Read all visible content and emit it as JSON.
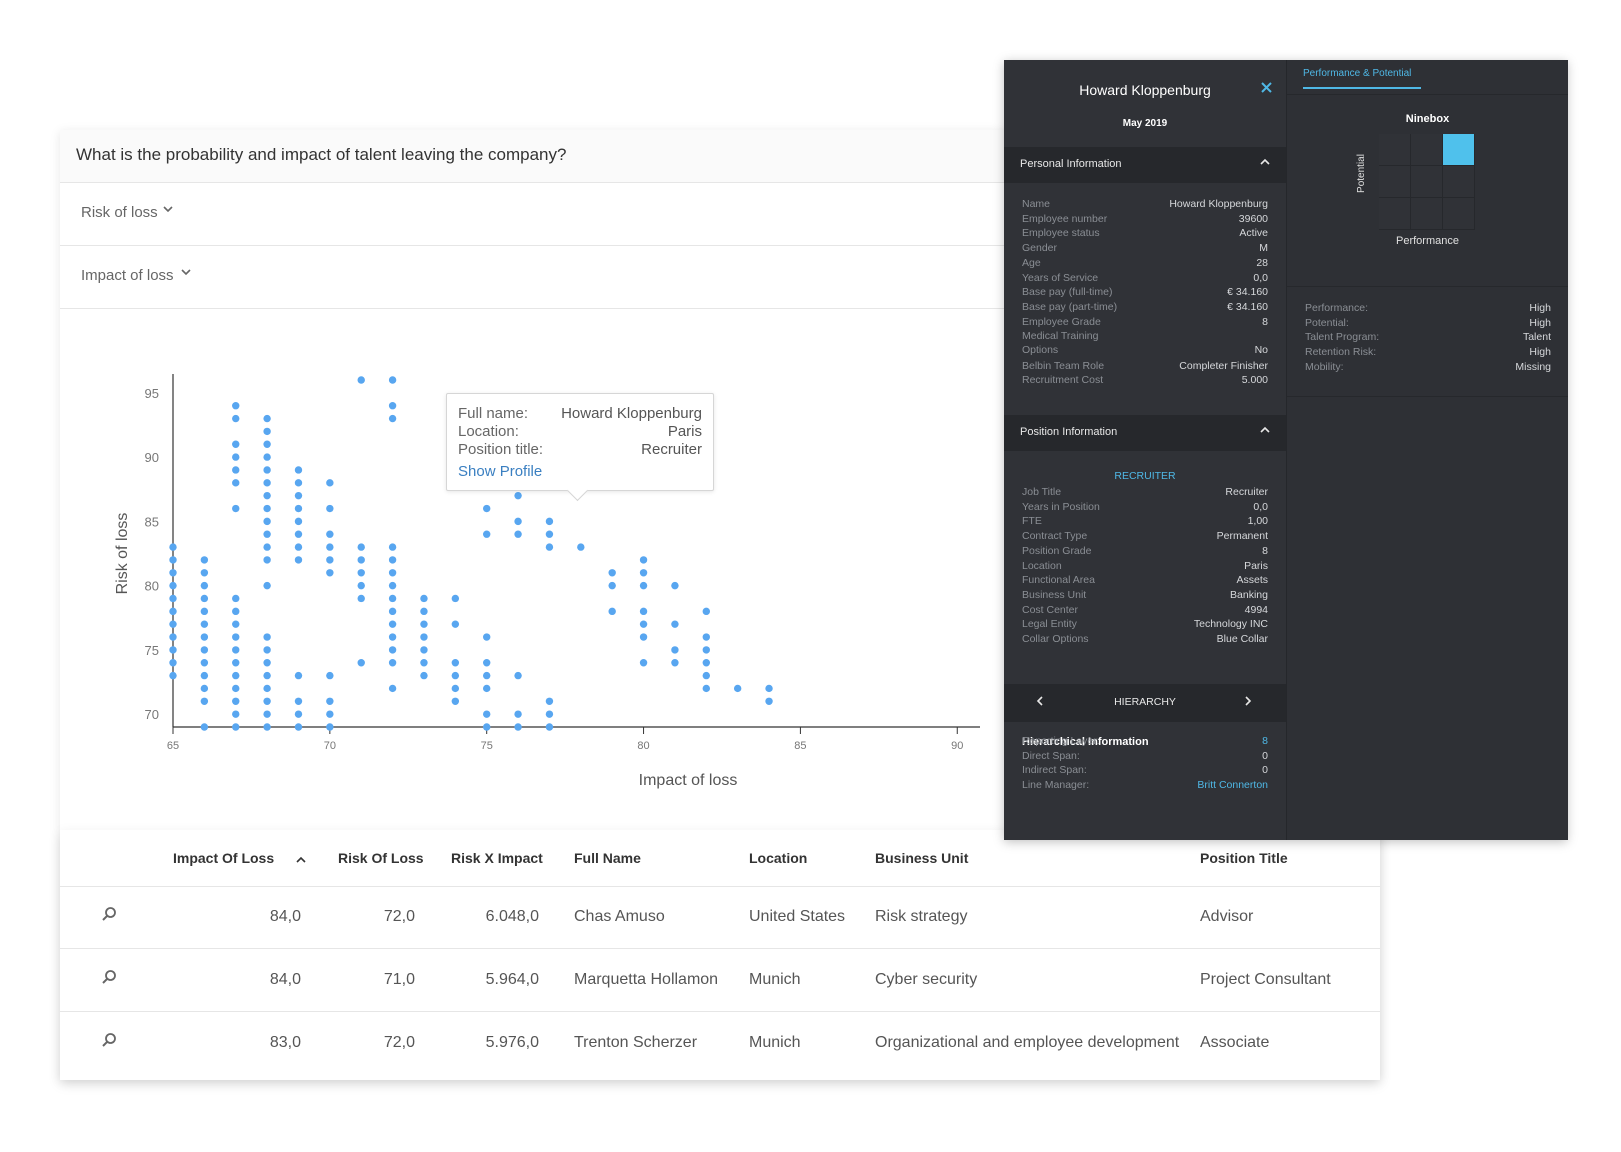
{
  "question": "What is the probability and impact of talent leaving the company?",
  "filters": {
    "risk_label": "Risk of loss",
    "impact_label": "Impact of loss",
    "chevron": "chevron-down-icon"
  },
  "tooltip": {
    "full_name_key": "Full name:",
    "full_name": "Howard Kloppenburg",
    "location_key": "Location:",
    "location": "Paris",
    "position_key": "Position title:",
    "position": "Recruiter",
    "link": "Show Profile"
  },
  "chart_data": {
    "type": "scatter",
    "xlabel": "Impact of loss",
    "ylabel": "Risk of loss",
    "xlim": [
      65,
      92
    ],
    "ylim": [
      69,
      96
    ],
    "xticks": [
      65,
      70,
      75,
      80,
      85,
      90
    ],
    "yticks": [
      70,
      75,
      80,
      85,
      90,
      95
    ],
    "color": "#58a6f0",
    "columns": [
      {
        "x": 65,
        "y": [
          73,
          74,
          75,
          76,
          77,
          78,
          79,
          80,
          81,
          82,
          83
        ]
      },
      {
        "x": 66,
        "y": [
          69,
          71,
          72,
          73,
          74,
          75,
          76,
          77,
          78,
          79,
          80,
          81,
          82
        ]
      },
      {
        "x": 67,
        "y": [
          69,
          70,
          71,
          72,
          73,
          74,
          75,
          76,
          77,
          78,
          79,
          86,
          88,
          89,
          90,
          91,
          93,
          94
        ]
      },
      {
        "x": 68,
        "y": [
          69,
          70,
          71,
          72,
          73,
          74,
          75,
          76,
          80,
          82,
          83,
          84,
          85,
          86,
          87,
          88,
          89,
          90,
          91,
          92,
          93
        ]
      },
      {
        "x": 69,
        "y": [
          69,
          70,
          71,
          73,
          82,
          83,
          84,
          85,
          86,
          87,
          88,
          89
        ]
      },
      {
        "x": 70,
        "y": [
          69,
          70,
          71,
          73,
          81,
          82,
          83,
          84,
          86,
          88
        ]
      },
      {
        "x": 71,
        "y": [
          74,
          79,
          80,
          81,
          82,
          83,
          96
        ]
      },
      {
        "x": 72,
        "y": [
          72,
          74,
          75,
          76,
          77,
          78,
          79,
          80,
          81,
          82,
          83,
          93,
          94,
          96
        ]
      },
      {
        "x": 73,
        "y": [
          73,
          74,
          75,
          76,
          77,
          78,
          79
        ]
      },
      {
        "x": 74,
        "y": [
          71,
          72,
          73,
          74,
          77,
          79
        ]
      },
      {
        "x": 75,
        "y": [
          69,
          70,
          72,
          73,
          74,
          76,
          84,
          86,
          88,
          90,
          91
        ]
      },
      {
        "x": 76,
        "y": [
          69,
          70,
          73,
          84,
          85,
          87,
          88,
          89,
          90
        ]
      },
      {
        "x": 77,
        "y": [
          69,
          70,
          71,
          83,
          84,
          85,
          90
        ]
      },
      {
        "x": 78,
        "y": [
          83,
          90
        ]
      },
      {
        "x": 79,
        "y": [
          78,
          80,
          81
        ]
      },
      {
        "x": 80,
        "y": [
          74,
          76,
          77,
          78,
          80,
          81,
          82
        ]
      },
      {
        "x": 81,
        "y": [
          74,
          75,
          77,
          80
        ]
      },
      {
        "x": 82,
        "y": [
          72,
          73,
          74,
          75,
          76,
          78
        ]
      },
      {
        "x": 83,
        "y": [
          72
        ]
      },
      {
        "x": 84,
        "y": [
          71,
          72
        ]
      }
    ]
  },
  "table": {
    "headers": [
      "Impact Of Loss",
      "Risk Of Loss",
      "Risk X Impact",
      "Full Name",
      "Location",
      "Business Unit",
      "Position Title"
    ],
    "sort_icon": "sort-ascending-icon",
    "row_icon": "search-icon",
    "rows": [
      [
        "84,0",
        "72,0",
        "6.048,0",
        "Chas Amuso",
        "United States",
        "Risk strategy",
        "Advisor"
      ],
      [
        "84,0",
        "71,0",
        "5.964,0",
        "Marquetta Hollamon",
        "Munich",
        "Cyber security",
        "Project Consultant"
      ],
      [
        "83,0",
        "72,0",
        "5.976,0",
        "Trenton Scherzer",
        "Munich",
        "Organizational and employee development",
        "Associate"
      ]
    ]
  },
  "profile": {
    "name": "Howard Kloppenburg",
    "date": "May 2019",
    "close_icon": "close-icon",
    "personal": {
      "title": "Personal Information",
      "fields": [
        {
          "k": "Name",
          "v": "Howard Kloppenburg"
        },
        {
          "k": "Employee number",
          "v": "39600"
        },
        {
          "k": "Employee status",
          "v": "Active"
        },
        {
          "k": "Gender",
          "v": "M"
        },
        {
          "k": "Age",
          "v": "28"
        },
        {
          "k": "Years of Service",
          "v": "0,0"
        },
        {
          "k": "Base pay (full-time)",
          "v": "€ 34.160"
        },
        {
          "k": "Base pay (part-time)",
          "v": "€ 34.160"
        },
        {
          "k": "Employee Grade",
          "v": "8"
        },
        {
          "k": "Medical Training",
          "v": ""
        },
        {
          "k": "Options",
          "v": "No"
        },
        {
          "k": "Belbin Team Role",
          "v": "Completer Finisher"
        },
        {
          "k": "Recruitment Cost",
          "v": "5.000"
        }
      ]
    },
    "position": {
      "title": "Position Information",
      "role": "RECRUITER",
      "fields": [
        {
          "k": "Job Title",
          "v": "Recruiter"
        },
        {
          "k": "Years in Position",
          "v": "0,0"
        },
        {
          "k": "FTE",
          "v": "1,00"
        },
        {
          "k": "Contract Type",
          "v": "Permanent"
        },
        {
          "k": "Position Grade",
          "v": "8"
        },
        {
          "k": "Location",
          "v": "Paris"
        },
        {
          "k": "Functional Area",
          "v": "Assets"
        },
        {
          "k": "Business Unit",
          "v": "Banking"
        },
        {
          "k": "Cost Center",
          "v": "4994"
        },
        {
          "k": "Legal Entity",
          "v": "Technology INC"
        },
        {
          "k": "Collar Options",
          "v": "Blue Collar"
        }
      ]
    },
    "hierarchy": {
      "nav_label": "HIERARCHY",
      "title": "Hierarchical Information",
      "fields": [
        {
          "k": "Reporting Layer:",
          "v": "8"
        },
        {
          "k": "Direct Span:",
          "v": "0"
        },
        {
          "k": "Indirect Span:",
          "v": "0"
        },
        {
          "k": "Line Manager:",
          "v": "Britt Connerton"
        }
      ]
    },
    "tab": "Performance & Potential",
    "ninebox": {
      "title": "Ninebox",
      "y_label": "Potential",
      "x_label": "Performance",
      "selected": {
        "performance": "High",
        "potential": "High"
      }
    },
    "summary": [
      {
        "k": "Performance:",
        "v": "High"
      },
      {
        "k": "Potential:",
        "v": "High"
      },
      {
        "k": "Talent Program:",
        "v": "Talent"
      },
      {
        "k": "Retention Risk:",
        "v": "High"
      },
      {
        "k": "Mobility:",
        "v": "Missing"
      }
    ],
    "accent": "#4fb8e6"
  }
}
